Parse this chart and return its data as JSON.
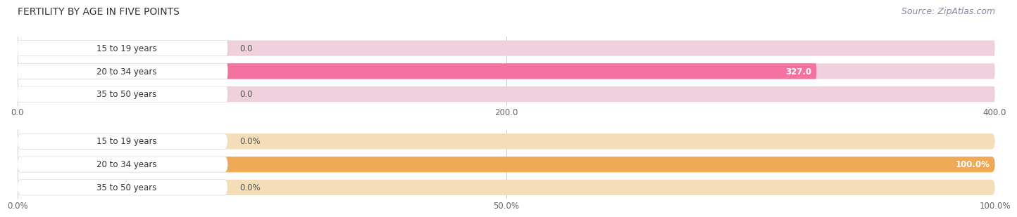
{
  "title": "FERTILITY BY AGE IN FIVE POINTS",
  "source": "Source: ZipAtlas.com",
  "top_chart": {
    "categories": [
      "15 to 19 years",
      "20 to 34 years",
      "35 to 50 years"
    ],
    "values": [
      0.0,
      327.0,
      0.0
    ],
    "bar_color": "#f472a0",
    "bar_bg_color": "#f0d0dc",
    "bar_label_bg": "#ffffff",
    "xlim": [
      0,
      400.0
    ],
    "xticks": [
      0.0,
      200.0,
      400.0
    ],
    "value_labels": [
      "0.0",
      "327.0",
      "0.0"
    ]
  },
  "bottom_chart": {
    "categories": [
      "15 to 19 years",
      "20 to 34 years",
      "35 to 50 years"
    ],
    "values": [
      0.0,
      100.0,
      0.0
    ],
    "bar_color": "#f0aa55",
    "bar_bg_color": "#f5ddb8",
    "bar_label_bg": "#ffffff",
    "xlim": [
      0,
      100.0
    ],
    "xticks": [
      0.0,
      50.0,
      100.0
    ],
    "xticklabels": [
      "0.0%",
      "50.0%",
      "100.0%"
    ],
    "value_labels": [
      "0.0%",
      "100.0%",
      "0.0%"
    ]
  },
  "fig_bg_color": "#ffffff",
  "plot_bg_color": "#f2f2f2",
  "row_bg_color": "#e8e8e8",
  "title_fontsize": 10,
  "source_fontsize": 9,
  "label_fontsize": 8.5,
  "tick_fontsize": 8.5
}
